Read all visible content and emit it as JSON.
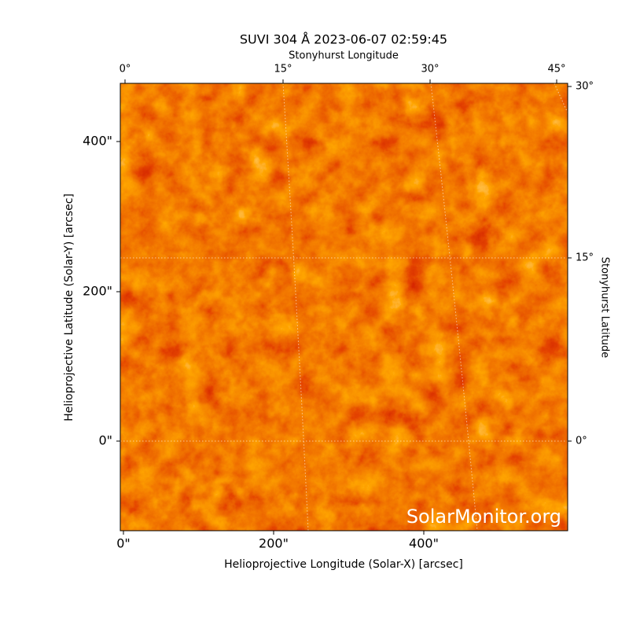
{
  "title": "SUVI 304 Å 2023-06-07 02:59:45",
  "top_axis_label": "Stonyhurst Longitude",
  "right_axis_label": "Stonyhurst Latitude",
  "x_axis_label": "Helioprojective Longitude (Solar-X) [arcsec]",
  "y_axis_label": "Helioprojective Latitude (Solar-Y) [arcsec]",
  "x_tick_labels": [
    "0\"",
    "200\"",
    "400\""
  ],
  "y_tick_labels": [
    "400\"",
    "200\"",
    "0\""
  ],
  "top_tick_labels": [
    "0°",
    "15°",
    "30°",
    "45°"
  ],
  "right_tick_labels": [
    "30°",
    "15°",
    "0°"
  ],
  "watermark": "SolarMonitor.org"
}
